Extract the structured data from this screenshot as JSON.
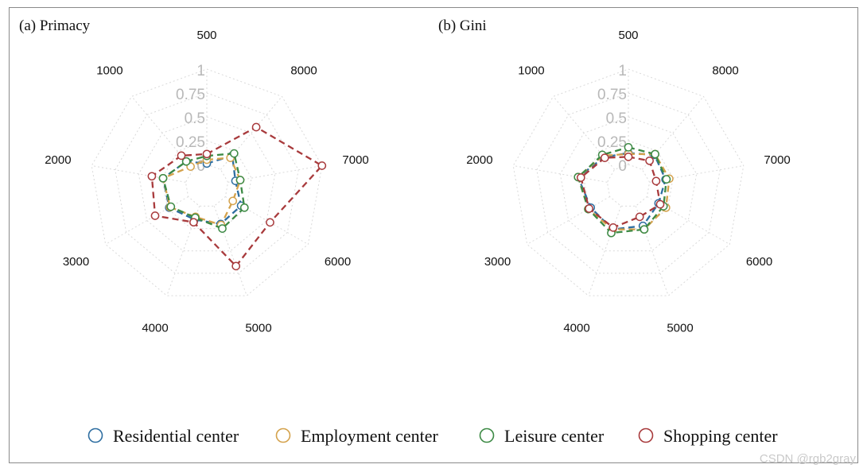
{
  "chart_data": [
    {
      "type": "radar",
      "title": "(a) Primacy",
      "axes": [
        "500",
        "8000",
        "7000",
        "6000",
        "5000",
        "4000",
        "3000",
        "2000",
        "1000"
      ],
      "ring_labels": [
        "1",
        "0.75",
        "0.5",
        "0.25",
        "0"
      ],
      "range": [
        0,
        1
      ],
      "series": [
        {
          "name": "Residential center",
          "values": [
            0.01,
            0.19,
            0.08,
            0.19,
            0.2,
            0.15,
            0.23,
            0.24,
            0.11
          ]
        },
        {
          "name": "Employment center",
          "values": [
            0.05,
            0.16,
            0.13,
            0.09,
            0.21,
            0.12,
            0.22,
            0.24,
            0.04
          ]
        },
        {
          "name": "Leisure center",
          "values": [
            0.09,
            0.22,
            0.13,
            0.23,
            0.25,
            0.13,
            0.21,
            0.24,
            0.11
          ]
        },
        {
          "name": "Shopping center",
          "values": [
            0.11,
            0.58,
            1.0,
            0.54,
            0.67,
            0.18,
            0.4,
            0.36,
            0.19
          ]
        }
      ]
    },
    {
      "type": "radar",
      "title": "(b) Gini",
      "axes": [
        "500",
        "8000",
        "7000",
        "6000",
        "5000",
        "4000",
        "3000",
        "2000",
        "1000"
      ],
      "ring_labels": [
        "1",
        "0.75",
        "0.5",
        "0.25",
        "0"
      ],
      "range": [
        0,
        1
      ],
      "series": [
        {
          "name": "Residential center",
          "values": [
            0.12,
            0.2,
            0.17,
            0.14,
            0.22,
            0.26,
            0.23,
            0.31,
            0.17
          ]
        },
        {
          "name": "Employment center",
          "values": [
            0.11,
            0.21,
            0.21,
            0.23,
            0.26,
            0.26,
            0.26,
            0.31,
            0.19
          ]
        },
        {
          "name": "Leisure center",
          "values": [
            0.18,
            0.21,
            0.18,
            0.2,
            0.26,
            0.3,
            0.26,
            0.31,
            0.2
          ]
        },
        {
          "name": "Shopping center",
          "values": [
            0.08,
            0.12,
            0.07,
            0.16,
            0.12,
            0.24,
            0.25,
            0.28,
            0.16
          ]
        }
      ]
    }
  ],
  "legend": [
    {
      "name": "Residential center",
      "color": "#2e6ea1"
    },
    {
      "name": "Employment center",
      "color": "#d4a24c"
    },
    {
      "name": "Leisure center",
      "color": "#3d8a45"
    },
    {
      "name": "Shopping center",
      "color": "#a83a3c"
    }
  ],
  "colors": {
    "Residential center": "#2e6ea1",
    "Employment center": "#d4a24c",
    "Leisure center": "#3d8a45",
    "Shopping center": "#a83a3c"
  },
  "watermark": "CSDN @rgb2gray"
}
